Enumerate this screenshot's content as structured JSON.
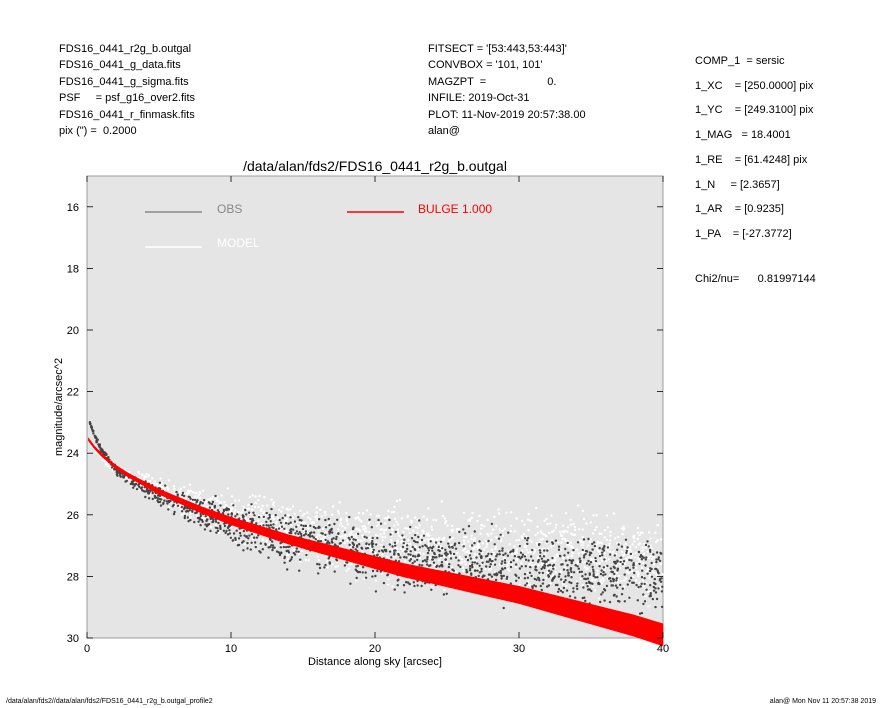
{
  "header_left": [
    "FDS16_0441_r2g_b.outgal",
    "FDS16_0441_g_data.fits",
    "FDS16_0441_g_sigma.fits",
    "PSF     = psf_g16_over2.fits",
    "FDS16_0441_r_finmask.fits",
    "pix (\") =  0.2000"
  ],
  "header_mid": [
    "FITSECT = '[53:443,53:443]'",
    "CONVBOX = '101, 101'",
    "MAGZPT  =                    0.",
    "INFILE: 2019-Oct-31",
    "PLOT: 11-Nov-2019 20:57:38.00",
    "alan@"
  ],
  "header_right": [
    "COMP_1  = sersic",
    "1_XC    = [250.0000] pix",
    "1_YC    = [249.3100] pix",
    "1_MAG   = 18.4001",
    "1_RE    = [61.4248] pix",
    "1_N     = [2.3657]",
    "1_AR    = [0.9235]",
    "1_PA    = [-27.3772]"
  ],
  "chi2_label": "Chi2/nu=      0.81997144",
  "footer_left": "/data/alan/fds2//data/alan/fds2/FDS16_0441_r2g_b.outgal_profile2",
  "footer_right": "alan@  Mon Nov 11 20:57:38 2019",
  "colors": {
    "plot_bg": "#e5e5e5",
    "obs": "#444444",
    "obs_legend": "#888888",
    "model": "#ffffff",
    "bulge": "#ff0000"
  },
  "chart_data": {
    "type": "scatter",
    "title": "/data/alan/fds2/FDS16_0441_r2g_b.outgal",
    "xlabel": "Distance along sky [arcsec]",
    "ylabel": "magnitude/arcsec^2",
    "xlim": [
      0,
      40
    ],
    "ylim": [
      30,
      15.0
    ],
    "y_inverted": true,
    "xticks": [
      0,
      10,
      20,
      30,
      40
    ],
    "yticks": [
      16,
      18,
      20,
      22,
      24,
      26,
      28,
      30
    ],
    "legend": [
      {
        "name": "OBS",
        "color": "#888888"
      },
      {
        "name": "MODEL",
        "color": "#ffffff"
      },
      {
        "name": "BULGE  1.000",
        "color": "#ff0000"
      }
    ],
    "series": [
      {
        "name": "BULGE  1.000",
        "kind": "band",
        "x": [
          0.1,
          0.5,
          1,
          2,
          3,
          4,
          5,
          6,
          8,
          10,
          12,
          14,
          16,
          18,
          20,
          22,
          24,
          26,
          28,
          30,
          32,
          34,
          36,
          38,
          40
        ],
        "y": [
          23.55,
          23.8,
          24.05,
          24.45,
          24.75,
          25.0,
          25.25,
          25.45,
          25.85,
          26.2,
          26.5,
          26.8,
          27.05,
          27.3,
          27.55,
          27.8,
          28.0,
          28.2,
          28.4,
          28.6,
          28.85,
          29.1,
          29.35,
          29.6,
          29.9
        ]
      },
      {
        "name": "OBS",
        "kind": "points",
        "x": [
          0.2,
          0.5,
          1,
          1.5,
          2,
          2.5,
          3,
          3.5,
          4,
          5,
          6,
          7,
          8,
          9,
          10,
          11,
          12,
          13,
          14,
          15,
          16,
          17,
          18,
          19,
          20,
          22,
          24,
          26,
          28,
          30,
          32,
          34,
          36,
          38,
          40
        ],
        "y": [
          23.0,
          23.4,
          23.9,
          24.2,
          24.5,
          24.7,
          24.85,
          25.0,
          25.1,
          25.35,
          25.55,
          25.75,
          25.95,
          26.1,
          26.3,
          26.4,
          26.5,
          26.65,
          26.75,
          26.85,
          26.95,
          27.05,
          27.15,
          27.25,
          27.3,
          27.45,
          27.55,
          27.6,
          27.7,
          27.75,
          27.8,
          27.85,
          27.9,
          27.95,
          28.0
        ],
        "scatter_mag": [
          0.05,
          0.08,
          0.12,
          0.15,
          0.2,
          0.25,
          0.3,
          0.35,
          0.4,
          0.5,
          0.6,
          0.7,
          0.8,
          0.9,
          1.0,
          1.05,
          1.1,
          1.15,
          1.2,
          1.25,
          1.3,
          1.3,
          1.35,
          1.35,
          1.4,
          1.4,
          1.45,
          1.45,
          1.5,
          1.5,
          1.5,
          1.55,
          1.55,
          1.55,
          1.6
        ]
      },
      {
        "name": "MODEL",
        "kind": "points",
        "x": [
          0.3,
          1,
          2,
          3,
          4,
          5,
          6,
          8,
          10,
          12,
          14,
          16,
          18,
          20,
          22,
          24,
          26,
          28,
          30,
          32,
          34,
          36,
          38,
          40
        ],
        "y": [
          23.7,
          24.1,
          24.5,
          24.8,
          25.0,
          25.2,
          25.4,
          25.7,
          26.0,
          26.25,
          26.45,
          26.6,
          26.75,
          26.85,
          26.95,
          27.05,
          27.1,
          27.15,
          27.2,
          27.25,
          27.3,
          27.35,
          27.4,
          27.45
        ],
        "scatter_mag": [
          0.1,
          0.2,
          0.3,
          0.35,
          0.45,
          0.55,
          0.65,
          0.85,
          1.05,
          1.2,
          1.35,
          1.45,
          1.55,
          1.6,
          1.65,
          1.7,
          1.75,
          1.75,
          1.8,
          1.8,
          1.85,
          1.85,
          1.9,
          1.9
        ]
      }
    ]
  }
}
